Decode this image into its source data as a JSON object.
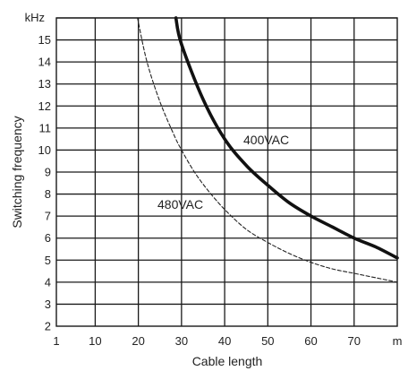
{
  "chart_data": {
    "type": "line",
    "xlabel": "Cable length",
    "ylabel": "Switching frequency",
    "x_unit": "m",
    "y_unit": "kHz",
    "x_tick_labels": [
      "1",
      "10",
      "20",
      "30",
      "40",
      "50",
      "60",
      "70"
    ],
    "y_ticks": [
      2,
      3,
      4,
      5,
      6,
      7,
      8,
      9,
      10,
      11,
      12,
      13,
      14,
      15
    ],
    "xlim": [
      1,
      80
    ],
    "ylim": [
      2,
      16
    ],
    "grid": true,
    "series": [
      {
        "name": "400VAC",
        "style": "solid-thick",
        "color": "#111111",
        "x": [
          28.7,
          30,
          35,
          40,
          45,
          50,
          55,
          60,
          65,
          70,
          75,
          80
        ],
        "y": [
          16,
          14.8,
          12.3,
          10.5,
          9.3,
          8.4,
          7.6,
          7.0,
          6.5,
          6.0,
          5.6,
          5.1
        ]
      },
      {
        "name": "480VAC",
        "style": "dashed-thin",
        "color": "#222222",
        "x": [
          19.8,
          22,
          25,
          28,
          30,
          33,
          36,
          40,
          45,
          50,
          55,
          60,
          65,
          70,
          75,
          80
        ],
        "y": [
          16,
          14.0,
          12.2,
          10.8,
          10.0,
          9.0,
          8.2,
          7.3,
          6.4,
          5.8,
          5.3,
          4.9,
          4.6,
          4.4,
          4.2,
          4.0
        ]
      }
    ]
  }
}
